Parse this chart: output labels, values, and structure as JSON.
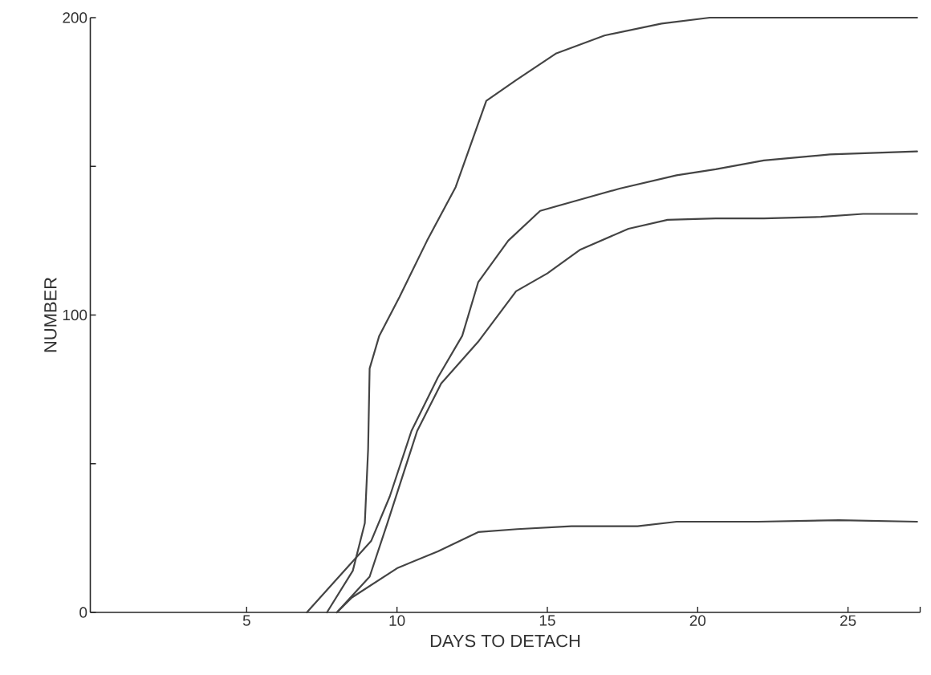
{
  "chart_data": {
    "type": "line",
    "xlabel": "DAYS TO DETACH",
    "ylabel": "NUMBER",
    "xlim": [
      -0.2,
      27.4
    ],
    "ylim": [
      0,
      200
    ],
    "xticks": [
      5,
      10,
      15,
      20,
      25,
      {
        "value": 27.4,
        "label": null
      }
    ],
    "yticks": [
      0,
      {
        "value": 50,
        "label": null
      },
      100,
      {
        "value": 150,
        "label": null
      },
      200
    ],
    "marker": "none",
    "line_style": "solid",
    "series": [
      {
        "color": "#444444",
        "x": [
          7.67,
          8.53,
          8.93,
          9.04,
          9.09,
          9.41,
          10.08,
          11.0,
          11.95,
          12.97,
          13.96,
          15.3,
          16.9,
          18.8,
          20.4,
          23.3,
          27.3
        ],
        "values": [
          0,
          14,
          30,
          55,
          82,
          93,
          106,
          125,
          143,
          172,
          179,
          188,
          194,
          198,
          200,
          200,
          200
        ]
      },
      {
        "color": "#444444",
        "x": [
          7.0,
          9.14,
          9.76,
          10.48,
          11.36,
          12.17,
          12.7,
          13.7,
          14.76,
          15.8,
          17.4,
          19.3,
          20.6,
          22.2,
          24.4,
          27.3
        ],
        "values": [
          0,
          24,
          39,
          61,
          79,
          93,
          111,
          125,
          135,
          138,
          142.5,
          147,
          149,
          152,
          154,
          155
        ]
      },
      {
        "color": "#444444",
        "x": [
          8.0,
          9.09,
          9.68,
          10.67,
          11.47,
          12.7,
          13.96,
          15.0,
          16.1,
          17.7,
          19.0,
          20.6,
          22.2,
          24.1,
          25.5,
          27.3
        ],
        "values": [
          0,
          12,
          30,
          61,
          77,
          91,
          108,
          114,
          122,
          129,
          132,
          132.5,
          132.5,
          133,
          134,
          134
        ]
      },
      {
        "color": "#444444",
        "x": [
          8.0,
          8.5,
          10.03,
          11.36,
          12.7,
          14.0,
          15.8,
          18.0,
          19.3,
          22.0,
          24.7,
          27.3
        ],
        "values": [
          0,
          5,
          15,
          20.5,
          27,
          28,
          29,
          29,
          30.5,
          30.5,
          31,
          30.5
        ]
      }
    ]
  }
}
